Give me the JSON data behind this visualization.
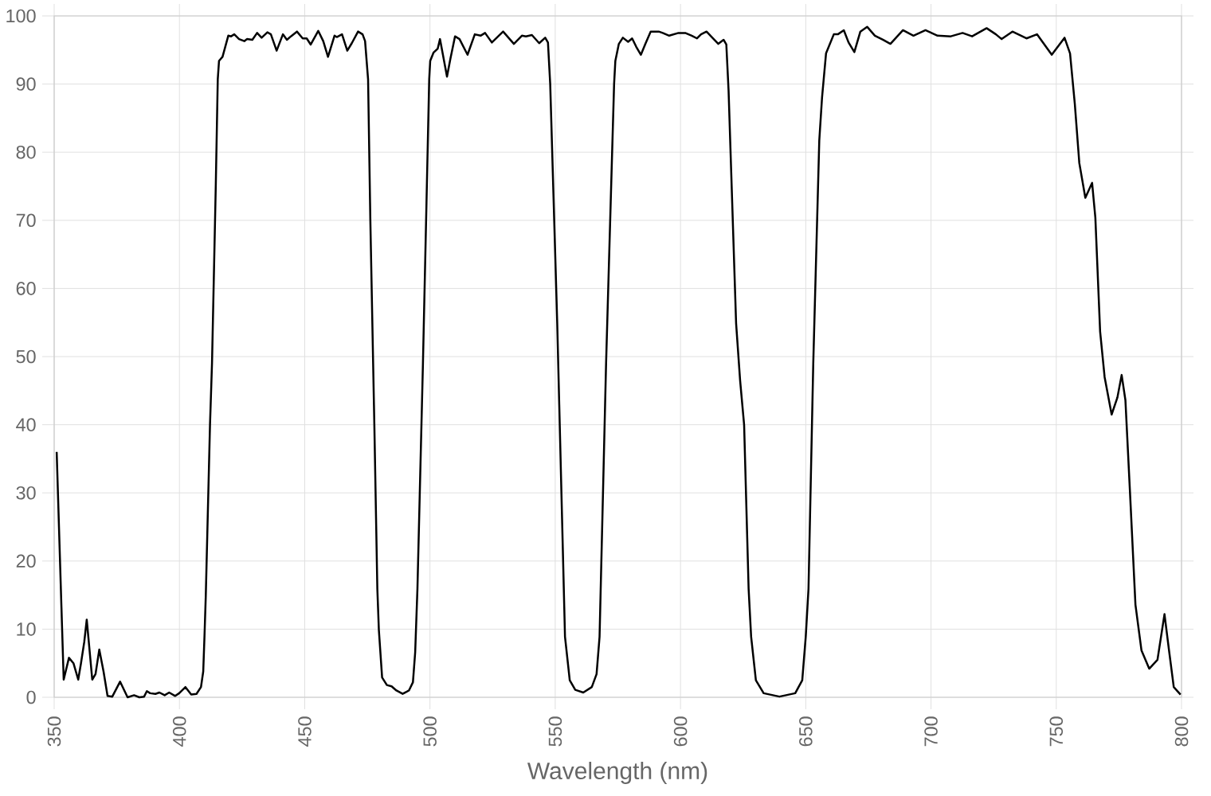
{
  "chart_data": {
    "type": "line",
    "xlabel": "Wavelength (nm)",
    "color": "#000000",
    "line_style": "solid",
    "grid": true,
    "xlim": [
      350,
      800
    ],
    "ylim": [
      0,
      100
    ],
    "xticks": [
      350,
      400,
      450,
      500,
      550,
      600,
      650,
      700,
      750,
      800
    ],
    "yticks": [
      0,
      10,
      20,
      30,
      40,
      50,
      60,
      70,
      80,
      90,
      100
    ],
    "x": [
      351.0,
      353.1,
      353.8,
      355.9,
      357.7,
      359.6,
      360.7,
      362.0,
      363.0,
      365.2,
      366.5,
      368.0,
      369.7,
      371.3,
      373.2,
      376.3,
      379.3,
      381.9,
      384.0,
      385.9,
      387.0,
      388.3,
      390.4,
      392.0,
      394.1,
      395.9,
      398.3,
      399.9,
      402.4,
      404.7,
      406.8,
      408.6,
      409.5,
      410.0,
      410.5,
      412.2,
      413.0,
      414.5,
      415.3,
      415.8,
      417.2,
      419.5,
      420.6,
      421.9,
      423.8,
      425.9,
      427.0,
      429.1,
      431.0,
      432.8,
      435.1,
      436.5,
      438.8,
      441.3,
      442.9,
      444.5,
      446.9,
      449.2,
      450.8,
      452.4,
      455.4,
      457.4,
      459.3,
      461.9,
      462.8,
      464.9,
      467.0,
      468.8,
      471.3,
      473.1,
      474.1,
      475.3,
      476.2,
      477.8,
      479.0,
      479.6,
      480.9,
      482.8,
      484.7,
      486.6,
      489.1,
      491.6,
      493.2,
      494.1,
      495.0,
      497.2,
      499.7,
      500.1,
      501.4,
      503.1,
      504.0,
      506.8,
      508.1,
      510.0,
      511.8,
      515.0,
      517.9,
      520.2,
      522.0,
      524.7,
      529.2,
      533.5,
      536.7,
      538.3,
      540.7,
      543.6,
      546.0,
      547.1,
      548.0,
      550.8,
      553.9,
      555.8,
      558.0,
      561.2,
      564.6,
      566.5,
      567.7,
      570.3,
      573.5,
      574.0,
      575.4,
      577.0,
      579.1,
      580.7,
      582.3,
      584.2,
      586.0,
      588.1,
      591.3,
      592.9,
      595.5,
      599.2,
      601.9,
      604.5,
      606.6,
      608.2,
      610.4,
      612.5,
      615.1,
      617.2,
      618.3,
      619.2,
      622.2,
      623.8,
      625.4,
      627.2,
      628.2,
      630.1,
      633.2,
      639.5,
      645.8,
      648.6,
      650.0,
      651.1,
      653.0,
      655.4,
      656.5,
      658.1,
      661.2,
      662.8,
      665.2,
      667.1,
      669.4,
      671.8,
      674.5,
      677.6,
      680.8,
      683.8,
      688.8,
      693.0,
      697.8,
      702.6,
      707.9,
      712.6,
      716.4,
      722.2,
      725.9,
      728.2,
      732.5,
      738.1,
      742.3,
      748.2,
      753.3,
      755.5,
      757.4,
      759.2,
      761.6,
      764.3,
      765.6,
      767.5,
      769.3,
      772.1,
      774.4,
      776.1,
      777.6,
      779.4,
      781.6,
      784.0,
      787.1,
      790.4,
      793.2,
      795.0,
      796.9,
      799.6
    ],
    "values": [
      36.0,
      10.8,
      2.6,
      5.8,
      5.0,
      2.6,
      5.0,
      8.1,
      11.4,
      2.6,
      3.4,
      7.0,
      3.8,
      0.2,
      0.1,
      2.3,
      0.0,
      0.3,
      0.0,
      0.1,
      0.9,
      0.6,
      0.5,
      0.7,
      0.3,
      0.7,
      0.2,
      0.6,
      1.5,
      0.4,
      0.5,
      1.5,
      3.8,
      9.0,
      14.7,
      40.0,
      49.0,
      75.0,
      90.7,
      93.4,
      94.0,
      97.1,
      97.0,
      97.3,
      96.6,
      96.3,
      96.6,
      96.5,
      97.5,
      96.8,
      97.6,
      97.3,
      94.9,
      97.3,
      96.5,
      97.0,
      97.7,
      96.7,
      96.7,
      95.8,
      97.8,
      96.3,
      94.0,
      97.1,
      96.9,
      97.3,
      94.9,
      96.0,
      97.7,
      97.3,
      96.3,
      90.7,
      70.1,
      40.0,
      15.9,
      9.9,
      2.9,
      1.8,
      1.6,
      1.0,
      0.5,
      1.0,
      2.2,
      6.6,
      15.9,
      49.0,
      90.7,
      93.4,
      94.6,
      95.2,
      96.6,
      91.1,
      93.6,
      97.0,
      96.6,
      94.3,
      97.3,
      97.1,
      97.5,
      96.1,
      97.7,
      95.9,
      97.1,
      97.0,
      97.2,
      96.0,
      96.8,
      96.1,
      90.0,
      54.9,
      8.9,
      2.5,
      1.1,
      0.7,
      1.5,
      3.4,
      8.9,
      49.0,
      90.0,
      93.4,
      95.9,
      96.8,
      96.2,
      96.7,
      95.5,
      94.3,
      95.9,
      97.7,
      97.7,
      97.5,
      97.1,
      97.5,
      97.5,
      97.1,
      96.7,
      97.3,
      97.7,
      96.9,
      95.9,
      96.5,
      95.8,
      89.0,
      54.9,
      46.5,
      40.0,
      15.9,
      8.9,
      2.5,
      0.6,
      0.1,
      0.6,
      2.5,
      8.9,
      15.9,
      49.0,
      81.7,
      88.0,
      94.5,
      97.3,
      97.3,
      97.9,
      96.1,
      94.7,
      97.7,
      98.4,
      97.1,
      96.5,
      95.9,
      97.9,
      97.1,
      97.9,
      97.1,
      97.0,
      97.5,
      97.0,
      98.2,
      97.3,
      96.6,
      97.7,
      96.7,
      97.3,
      94.3,
      96.8,
      94.5,
      87.1,
      78.4,
      73.3,
      75.5,
      70.4,
      53.7,
      47.0,
      41.5,
      44.0,
      47.3,
      43.6,
      30.3,
      13.6,
      6.9,
      4.2,
      5.5,
      12.2,
      6.9,
      1.5,
      0.4
    ]
  }
}
